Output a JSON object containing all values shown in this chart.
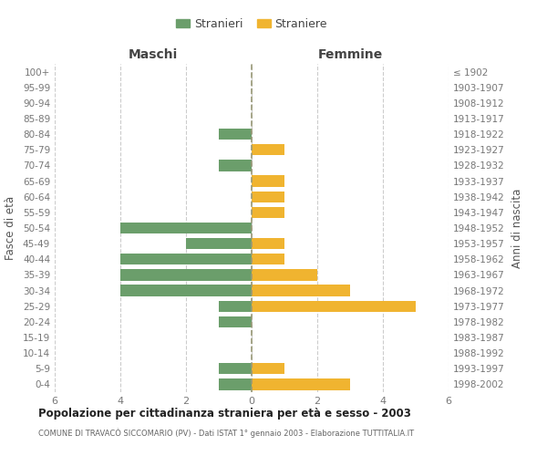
{
  "age_groups": [
    "0-4",
    "5-9",
    "10-14",
    "15-19",
    "20-24",
    "25-29",
    "30-34",
    "35-39",
    "40-44",
    "45-49",
    "50-54",
    "55-59",
    "60-64",
    "65-69",
    "70-74",
    "75-79",
    "80-84",
    "85-89",
    "90-94",
    "95-99",
    "100+"
  ],
  "birth_years": [
    "1998-2002",
    "1993-1997",
    "1988-1992",
    "1983-1987",
    "1978-1982",
    "1973-1977",
    "1968-1972",
    "1963-1967",
    "1958-1962",
    "1953-1957",
    "1948-1952",
    "1943-1947",
    "1938-1942",
    "1933-1937",
    "1928-1932",
    "1923-1927",
    "1918-1922",
    "1913-1917",
    "1908-1912",
    "1903-1907",
    "≤ 1902"
  ],
  "males": [
    1,
    1,
    0,
    0,
    1,
    1,
    4,
    4,
    4,
    2,
    4,
    0,
    0,
    0,
    1,
    0,
    1,
    0,
    0,
    0,
    0
  ],
  "females": [
    3,
    1,
    0,
    0,
    0,
    5,
    3,
    2,
    1,
    1,
    0,
    1,
    1,
    1,
    0,
    1,
    0,
    0,
    0,
    0,
    0
  ],
  "male_color": "#6b9e6b",
  "female_color": "#f0b430",
  "title": "Popolazione per cittadinanza straniera per età e sesso - 2003",
  "subtitle": "COMUNE DI TRAVACÒ SICCOMARIO (PV) - Dati ISTAT 1° gennaio 2003 - Elaborazione TUTTITALIA.IT",
  "xlabel_left": "Maschi",
  "xlabel_right": "Femmine",
  "ylabel_left": "Fasce di età",
  "ylabel_right": "Anni di nascita",
  "legend_male": "Stranieri",
  "legend_female": "Straniere",
  "xlim": 6,
  "background_color": "#ffffff",
  "grid_color": "#cccccc"
}
